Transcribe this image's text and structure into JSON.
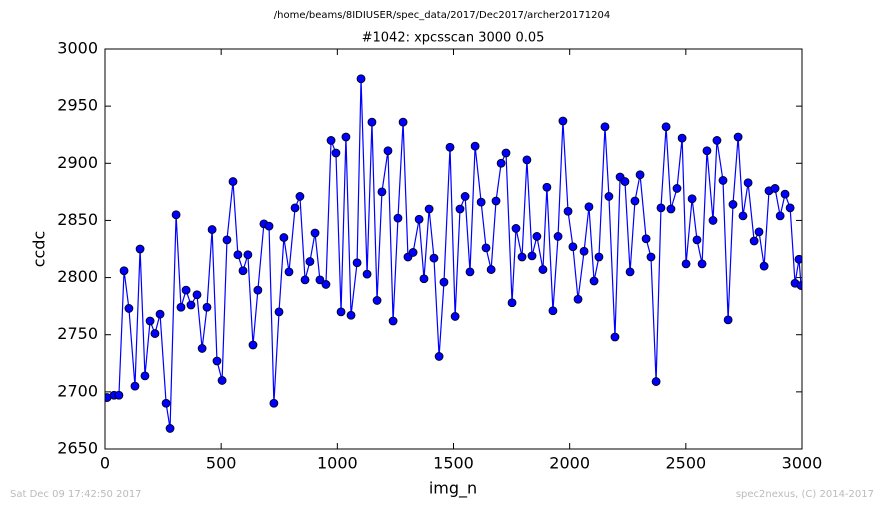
{
  "chart_data": {
    "type": "line",
    "suptitle": "/home/beams/8IDIUSER/spec_data/2017/Dec2017/archer20171204",
    "title": "#1042: xpcsscan 3000 0.05",
    "xlabel": "img_n",
    "ylabel": "ccdc",
    "annotations": [
      "Sat Dec 09 17:42:50 2017",
      "spec2nexus, (C) 2014-2017"
    ],
    "xlim": [
      0,
      3000
    ],
    "xticks": [
      0,
      500,
      1000,
      1500,
      2000,
      2500,
      3000
    ],
    "ylim": [
      2650,
      3000
    ],
    "yticks": [
      2650,
      2700,
      2750,
      2800,
      2850,
      2900,
      2950,
      3000
    ],
    "x": [
      9,
      39,
      60,
      82,
      103,
      129,
      151,
      172,
      194,
      215,
      237,
      263,
      280,
      306,
      327,
      349,
      370,
      396,
      418,
      439,
      461,
      482,
      504,
      525,
      551,
      572,
      594,
      615,
      637,
      658,
      684,
      706,
      727,
      749,
      770,
      792,
      818,
      839,
      861,
      882,
      904,
      925,
      951,
      973,
      994,
      1016,
      1037,
      1059,
      1085,
      1102,
      1128,
      1149,
      1171,
      1192,
      1218,
      1240,
      1261,
      1283,
      1304,
      1326,
      1352,
      1373,
      1395,
      1416,
      1438,
      1459,
      1485,
      1507,
      1528,
      1550,
      1571,
      1593,
      1619,
      1640,
      1662,
      1683,
      1705,
      1726,
      1752,
      1769,
      1795,
      1816,
      1838,
      1859,
      1885,
      1902,
      1928,
      1950,
      1971,
      1993,
      2014,
      2036,
      2062,
      2083,
      2105,
      2126,
      2152,
      2169,
      2195,
      2217,
      2238,
      2260,
      2281,
      2303,
      2329,
      2350,
      2372,
      2393,
      2415,
      2436,
      2462,
      2484,
      2501,
      2527,
      2548,
      2570,
      2591,
      2617,
      2634,
      2660,
      2682,
      2703,
      2725,
      2746,
      2768,
      2794,
      2815,
      2837,
      2858,
      2884,
      2906,
      2927,
      2949,
      2970,
      2987,
      2996
    ],
    "series": [
      {
        "name": "ccdc",
        "color": "#0000ff",
        "values": [
          2695,
          2697,
          2697,
          2806,
          2773,
          2705,
          2825,
          2714,
          2762,
          2751,
          2768,
          2690,
          2668,
          2855,
          2774,
          2789,
          2776,
          2785,
          2738,
          2774,
          2842,
          2727,
          2710,
          2833,
          2884,
          2820,
          2806,
          2820,
          2741,
          2789,
          2847,
          2845,
          2690,
          2770,
          2835,
          2805,
          2861,
          2871,
          2798,
          2814,
          2839,
          2798,
          2794,
          2920,
          2909,
          2770,
          2923,
          2767,
          2813,
          2974,
          2803,
          2936,
          2780,
          2875,
          2911,
          2762,
          2852,
          2936,
          2818,
          2822,
          2851,
          2799,
          2860,
          2817,
          2731,
          2796,
          2914,
          2766,
          2860,
          2871,
          2805,
          2915,
          2866,
          2826,
          2807,
          2867,
          2900,
          2909,
          2778,
          2843,
          2818,
          2903,
          2819,
          2836,
          2807,
          2879,
          2771,
          2836,
          2937,
          2858,
          2827,
          2781,
          2823,
          2862,
          2797,
          2818,
          2932,
          2871,
          2748,
          2888,
          2884,
          2805,
          2867,
          2890,
          2834,
          2818,
          2709,
          2861,
          2932,
          2860,
          2878,
          2922,
          2812,
          2869,
          2833,
          2812,
          2911,
          2850,
          2920,
          2885,
          2763,
          2864,
          2923,
          2854,
          2883,
          2832,
          2840,
          2810,
          2876,
          2878,
          2854,
          2873,
          2861,
          2795,
          2816,
          2793
        ]
      }
    ]
  }
}
